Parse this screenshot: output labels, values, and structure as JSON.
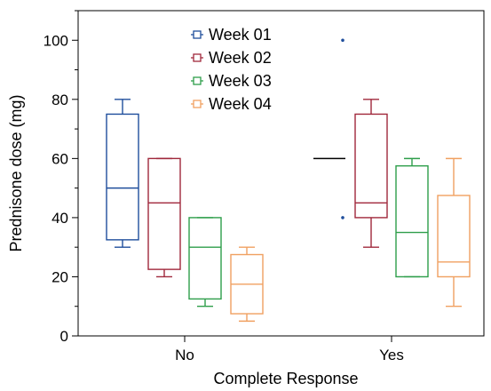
{
  "chart_data": {
    "type": "boxplot",
    "title": "",
    "xlabel": "Complete Response",
    "ylabel": "Prednisone dose (mg)",
    "ylim": [
      0,
      110
    ],
    "yticks": [
      0,
      20,
      40,
      60,
      80,
      100
    ],
    "categories": [
      "No",
      "Yes"
    ],
    "legend": {
      "position": "top-center"
    },
    "grid": false,
    "series": [
      {
        "name": "Week 01",
        "color": "#1f4e9c",
        "boxes": [
          {
            "min": 30,
            "q1": 32.5,
            "median": 50,
            "q3": 75,
            "max": 80,
            "outliers": []
          },
          {
            "min": 60,
            "q1": 60,
            "median": 60,
            "q3": 60,
            "max": 60,
            "outliers": [
              100,
              40
            ]
          }
        ]
      },
      {
        "name": "Week 02",
        "color": "#a0283c",
        "boxes": [
          {
            "min": 20,
            "q1": 22.5,
            "median": 45,
            "q3": 60,
            "max": 60,
            "outliers": []
          },
          {
            "min": 30,
            "q1": 40,
            "median": 45,
            "q3": 75,
            "max": 80,
            "outliers": []
          }
        ]
      },
      {
        "name": "Week 03",
        "color": "#2e9e4a",
        "boxes": [
          {
            "min": 10,
            "q1": 12.5,
            "median": 30,
            "q3": 40,
            "max": 40,
            "outliers": []
          },
          {
            "min": 20,
            "q1": 20,
            "median": 35,
            "q3": 57.5,
            "max": 60,
            "outliers": []
          }
        ]
      },
      {
        "name": "Week 04",
        "color": "#f0a060",
        "boxes": [
          {
            "min": 5,
            "q1": 7.5,
            "median": 17.5,
            "q3": 27.5,
            "max": 30,
            "outliers": []
          },
          {
            "min": 10,
            "q1": 20,
            "median": 25,
            "q3": 47.5,
            "max": 60,
            "outliers": []
          }
        ]
      }
    ]
  }
}
